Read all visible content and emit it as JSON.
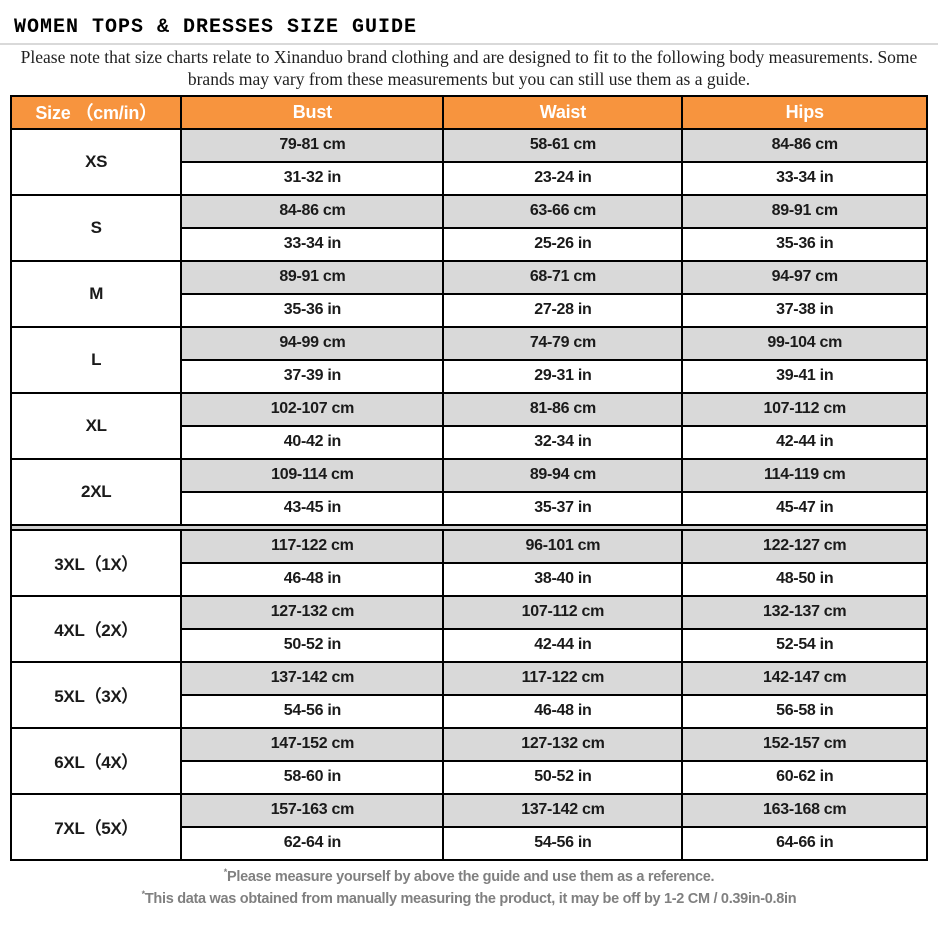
{
  "page": {
    "title": "WOMEN TOPS & DRESSES SIZE GUIDE",
    "subtitle": "Please note that size charts relate to  Xinanduo brand clothing and are designed to fit to the following body measurements. Some brands may vary from these measurements but you can still use them as a guide."
  },
  "colors": {
    "header_orange": "#f7943e",
    "row_gray": "#d9d9d9",
    "footnote_gray": "#808080",
    "border_black": "#000000"
  },
  "table": {
    "columns": [
      "Size （cm/in）",
      "Bust",
      "Waist",
      "Hips"
    ],
    "divider_after_index": 5,
    "rows": [
      {
        "size": "XS",
        "bust_cm": "79-81 cm",
        "waist_cm": "58-61 cm",
        "hips_cm": "84-86 cm",
        "bust_in": "31-32 in",
        "waist_in": "23-24 in",
        "hips_in": "33-34 in"
      },
      {
        "size": "S",
        "bust_cm": "84-86 cm",
        "waist_cm": "63-66 cm",
        "hips_cm": "89-91 cm",
        "bust_in": "33-34 in",
        "waist_in": "25-26 in",
        "hips_in": "35-36 in"
      },
      {
        "size": "M",
        "bust_cm": "89-91 cm",
        "waist_cm": "68-71 cm",
        "hips_cm": "94-97 cm",
        "bust_in": "35-36 in",
        "waist_in": "27-28 in",
        "hips_in": "37-38 in"
      },
      {
        "size": "L",
        "bust_cm": "94-99 cm",
        "waist_cm": "74-79 cm",
        "hips_cm": "99-104 cm",
        "bust_in": "37-39 in",
        "waist_in": "29-31 in",
        "hips_in": "39-41 in"
      },
      {
        "size": "XL",
        "bust_cm": "102-107 cm",
        "waist_cm": "81-86 cm",
        "hips_cm": "107-112 cm",
        "bust_in": "40-42 in",
        "waist_in": "32-34 in",
        "hips_in": "42-44 in"
      },
      {
        "size": "2XL",
        "bust_cm": "109-114 cm",
        "waist_cm": "89-94 cm",
        "hips_cm": "114-119 cm",
        "bust_in": "43-45 in",
        "waist_in": "35-37 in",
        "hips_in": "45-47 in"
      },
      {
        "size": "3XL（1X）",
        "bust_cm": "117-122 cm",
        "waist_cm": "96-101 cm",
        "hips_cm": "122-127 cm",
        "bust_in": "46-48 in",
        "waist_in": "38-40 in",
        "hips_in": "48-50 in"
      },
      {
        "size": "4XL（2X）",
        "bust_cm": "127-132 cm",
        "waist_cm": "107-112 cm",
        "hips_cm": "132-137 cm",
        "bust_in": "50-52 in",
        "waist_in": "42-44 in",
        "hips_in": "52-54 in"
      },
      {
        "size": "5XL（3X）",
        "bust_cm": "137-142 cm",
        "waist_cm": "117-122 cm",
        "hips_cm": "142-147 cm",
        "bust_in": "54-56 in",
        "waist_in": "46-48 in",
        "hips_in": "56-58 in"
      },
      {
        "size": "6XL（4X）",
        "bust_cm": "147-152 cm",
        "waist_cm": "127-132 cm",
        "hips_cm": "152-157 cm",
        "bust_in": "58-60 in",
        "waist_in": "50-52 in",
        "hips_in": "60-62 in"
      },
      {
        "size": "7XL（5X）",
        "bust_cm": "157-163 cm",
        "waist_cm": "137-142 cm",
        "hips_cm": "163-168 cm",
        "bust_in": "62-64 in",
        "waist_in": "54-56 in",
        "hips_in": "64-66 in"
      }
    ]
  },
  "footnotes": [
    {
      "marker": "*",
      "text": "Please measure yourself by above the guide and use them as a reference."
    },
    {
      "marker": "*",
      "text": "This data was obtained from manually measuring the product, it may be off by 1-2 CM / 0.39in-0.8in"
    }
  ]
}
